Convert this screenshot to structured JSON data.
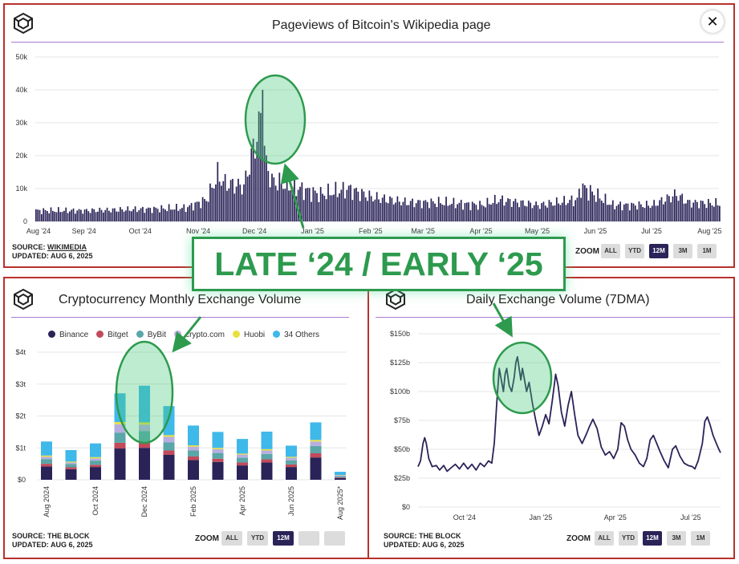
{
  "top": {
    "title": "Pageviews of Bitcoin's Wikipedia page",
    "close_label": "✕",
    "source_label": "SOURCE: ",
    "source_name": "WIKIMEDIA",
    "updated": "UPDATED: AUG 6, 2025",
    "zoom_label": "ZOOM",
    "zoom_buttons": [
      "ALL",
      "YTD",
      "12M",
      "3M",
      "1M"
    ],
    "zoom_active": "12M"
  },
  "left": {
    "title": "Cryptocurrency Monthly Exchange Volume",
    "source": "SOURCE: THE BLOCK",
    "updated": "UPDATED: AUG 6, 2025",
    "zoom_label": "ZOOM",
    "zoom_buttons": [
      "ALL",
      "YTD",
      "12M",
      "",
      ""
    ],
    "zoom_active": "12M"
  },
  "right": {
    "title": "Daily Exchange Volume (7DMA)",
    "source": "SOURCE: THE BLOCK",
    "updated": "UPDATED: AUG 6, 2025",
    "zoom_label": "ZOOM",
    "zoom_buttons": [
      "ALL",
      "YTD",
      "12M",
      "3M",
      "1M"
    ],
    "zoom_active": "12M"
  },
  "annotation": {
    "banner": "LATE ‘24 / EARLY ‘25",
    "highlight_color": "#2d9a4e"
  },
  "colors": {
    "navy": "#2a2358",
    "accent_rule": "#a87ad6",
    "panel_border": "#b7312c"
  },
  "chart_data": [
    {
      "type": "bar",
      "title": "Pageviews of Bitcoin's Wikipedia page",
      "ylim": [
        0,
        50000
      ],
      "y_ticks": [
        "0",
        "10k",
        "20k",
        "30k",
        "40k",
        "50k"
      ],
      "x_ticks": [
        "Aug '24",
        "Sep '24",
        "Oct '24",
        "Nov '24",
        "Dec '24",
        "Jan '25",
        "Feb '25",
        "Mar '25",
        "Apr '25",
        "May '25",
        "Jun '25",
        "Jul '25",
        "Aug '25"
      ],
      "x_start": "2024-08-06",
      "x_end": "2025-08-06",
      "daily_values_anchors": [
        [
          "2024-08-06",
          4000
        ],
        [
          "2024-09-01",
          4000
        ],
        [
          "2024-10-01",
          4500
        ],
        [
          "2024-10-25",
          5000
        ],
        [
          "2024-11-05",
          8000
        ],
        [
          "2024-11-11",
          17000
        ],
        [
          "2024-11-15",
          14000
        ],
        [
          "2024-11-25",
          13000
        ],
        [
          "2024-12-05",
          40000
        ],
        [
          "2024-12-06",
          23000
        ],
        [
          "2024-12-10",
          15000
        ],
        [
          "2024-12-20",
          13000
        ],
        [
          "2025-01-05",
          10000
        ],
        [
          "2025-01-20",
          12000
        ],
        [
          "2025-02-01",
          9000
        ],
        [
          "2025-02-20",
          7000
        ],
        [
          "2025-03-10",
          7000
        ],
        [
          "2025-04-01",
          6000
        ],
        [
          "2025-04-10",
          8000
        ],
        [
          "2025-05-01",
          6000
        ],
        [
          "2025-05-22",
          8000
        ],
        [
          "2025-05-24",
          13000
        ],
        [
          "2025-06-10",
          6000
        ],
        [
          "2025-07-01",
          6000
        ],
        [
          "2025-07-14",
          10000
        ],
        [
          "2025-07-20",
          7000
        ],
        [
          "2025-08-06",
          6500
        ]
      ],
      "color": "#2a2358"
    },
    {
      "type": "bar",
      "stacked": true,
      "title": "Cryptocurrency Monthly Exchange Volume",
      "categories": [
        "Aug 2024",
        "Sep 2024",
        "Oct 2024",
        "Nov 2024",
        "Dec 2024",
        "Jan 2025",
        "Feb 2025",
        "Mar 2025",
        "Apr 2025",
        "May 2025",
        "Jun 2025",
        "Jul 2025",
        "Aug 2025*"
      ],
      "x_tick_labels": [
        "Aug 2024",
        "Oct 2024",
        "Dec 2024",
        "Feb 2025",
        "Apr 2025",
        "Jun 2025",
        "Aug 2025*"
      ],
      "y_ticks": [
        "$0",
        "$1t",
        "$2t",
        "$3t",
        "$4t"
      ],
      "ylim": [
        0,
        4
      ],
      "unit": "trillion USD",
      "series": [
        {
          "name": "Binance",
          "color": "#2a2358",
          "values": [
            0.42,
            0.33,
            0.4,
            0.98,
            1.0,
            0.78,
            0.62,
            0.56,
            0.45,
            0.54,
            0.4,
            0.7,
            0.05
          ]
        },
        {
          "name": "Bitget",
          "color": "#c24a5a",
          "values": [
            0.08,
            0.06,
            0.07,
            0.18,
            0.19,
            0.14,
            0.11,
            0.1,
            0.09,
            0.1,
            0.08,
            0.13,
            0.02
          ]
        },
        {
          "name": "ByBit",
          "color": "#5aa6a8",
          "values": [
            0.15,
            0.1,
            0.13,
            0.32,
            0.34,
            0.25,
            0.19,
            0.18,
            0.15,
            0.17,
            0.13,
            0.23,
            0.04
          ]
        },
        {
          "name": "crypto.com",
          "color": "#b7aee0",
          "values": [
            0.07,
            0.05,
            0.07,
            0.26,
            0.2,
            0.18,
            0.12,
            0.12,
            0.1,
            0.11,
            0.08,
            0.14,
            0.03
          ]
        },
        {
          "name": "Huobi",
          "color": "#e8e03c",
          "values": [
            0.04,
            0.03,
            0.04,
            0.07,
            0.07,
            0.05,
            0.04,
            0.04,
            0.03,
            0.04,
            0.03,
            0.05,
            0.01
          ]
        },
        {
          "name": "34 Others",
          "color": "#3fb8ea",
          "values": [
            0.44,
            0.36,
            0.43,
            0.9,
            1.15,
            0.91,
            0.62,
            0.5,
            0.46,
            0.55,
            0.35,
            0.55,
            0.1
          ]
        }
      ]
    },
    {
      "type": "line",
      "title": "Daily Exchange Volume (7DMA)",
      "y_ticks": [
        "$0",
        "$25b",
        "$50b",
        "$75b",
        "$100b",
        "$125b",
        "$150b"
      ],
      "ylim": [
        0,
        150
      ],
      "unit": "billion USD",
      "x_ticks": [
        "Oct '24",
        "Jan '25",
        "Apr '25",
        "Jul '25"
      ],
      "x_start": "2024-08-06",
      "x_end": "2025-08-06",
      "points": [
        [
          "2024-08-06",
          35
        ],
        [
          "2024-08-09",
          40
        ],
        [
          "2024-08-12",
          55
        ],
        [
          "2024-08-14",
          60
        ],
        [
          "2024-08-16",
          55
        ],
        [
          "2024-08-19",
          42
        ],
        [
          "2024-08-23",
          35
        ],
        [
          "2024-08-28",
          36
        ],
        [
          "2024-09-01",
          32
        ],
        [
          "2024-09-06",
          36
        ],
        [
          "2024-09-10",
          31
        ],
        [
          "2024-09-15",
          34
        ],
        [
          "2024-09-20",
          37
        ],
        [
          "2024-09-25",
          33
        ],
        [
          "2024-09-30",
          38
        ],
        [
          "2024-10-05",
          33
        ],
        [
          "2024-10-10",
          37
        ],
        [
          "2024-10-15",
          32
        ],
        [
          "2024-10-20",
          38
        ],
        [
          "2024-10-25",
          35
        ],
        [
          "2024-10-30",
          40
        ],
        [
          "2024-11-03",
          38
        ],
        [
          "2024-11-06",
          55
        ],
        [
          "2024-11-09",
          90
        ],
        [
          "2024-11-12",
          120
        ],
        [
          "2024-11-15",
          108
        ],
        [
          "2024-11-17",
          100
        ],
        [
          "2024-11-19",
          115
        ],
        [
          "2024-11-21",
          120
        ],
        [
          "2024-11-24",
          105
        ],
        [
          "2024-11-27",
          100
        ],
        [
          "2024-11-30",
          112
        ],
        [
          "2024-12-02",
          125
        ],
        [
          "2024-12-04",
          130
        ],
        [
          "2024-12-06",
          120
        ],
        [
          "2024-12-08",
          110
        ],
        [
          "2024-12-10",
          120
        ],
        [
          "2024-12-12",
          112
        ],
        [
          "2024-12-15",
          100
        ],
        [
          "2024-12-18",
          108
        ],
        [
          "2024-12-22",
          90
        ],
        [
          "2024-12-26",
          75
        ],
        [
          "2024-12-30",
          62
        ],
        [
          "2025-01-03",
          70
        ],
        [
          "2025-01-07",
          80
        ],
        [
          "2025-01-11",
          72
        ],
        [
          "2025-01-15",
          92
        ],
        [
          "2025-01-19",
          115
        ],
        [
          "2025-01-22",
          105
        ],
        [
          "2025-01-26",
          82
        ],
        [
          "2025-01-30",
          70
        ],
        [
          "2025-02-03",
          88
        ],
        [
          "2025-02-07",
          100
        ],
        [
          "2025-02-11",
          80
        ],
        [
          "2025-02-15",
          62
        ],
        [
          "2025-02-20",
          55
        ],
        [
          "2025-02-25",
          63
        ],
        [
          "2025-03-01",
          70
        ],
        [
          "2025-03-05",
          76
        ],
        [
          "2025-03-10",
          68
        ],
        [
          "2025-03-15",
          52
        ],
        [
          "2025-03-20",
          45
        ],
        [
          "2025-03-25",
          48
        ],
        [
          "2025-03-30",
          42
        ],
        [
          "2025-04-04",
          50
        ],
        [
          "2025-04-08",
          73
        ],
        [
          "2025-04-12",
          70
        ],
        [
          "2025-04-16",
          58
        ],
        [
          "2025-04-20",
          50
        ],
        [
          "2025-04-25",
          45
        ],
        [
          "2025-04-30",
          38
        ],
        [
          "2025-05-05",
          35
        ],
        [
          "2025-05-09",
          42
        ],
        [
          "2025-05-13",
          58
        ],
        [
          "2025-05-17",
          62
        ],
        [
          "2025-05-21",
          55
        ],
        [
          "2025-05-25",
          48
        ],
        [
          "2025-05-30",
          40
        ],
        [
          "2025-06-04",
          34
        ],
        [
          "2025-06-09",
          50
        ],
        [
          "2025-06-13",
          53
        ],
        [
          "2025-06-18",
          44
        ],
        [
          "2025-06-23",
          38
        ],
        [
          "2025-06-28",
          36
        ],
        [
          "2025-07-03",
          35
        ],
        [
          "2025-07-06",
          33
        ],
        [
          "2025-07-10",
          40
        ],
        [
          "2025-07-15",
          55
        ],
        [
          "2025-07-18",
          74
        ],
        [
          "2025-07-21",
          78
        ],
        [
          "2025-07-24",
          72
        ],
        [
          "2025-07-28",
          62
        ],
        [
          "2025-08-01",
          55
        ],
        [
          "2025-08-04",
          50
        ],
        [
          "2025-08-06",
          47
        ]
      ],
      "color": "#2a2358"
    }
  ]
}
